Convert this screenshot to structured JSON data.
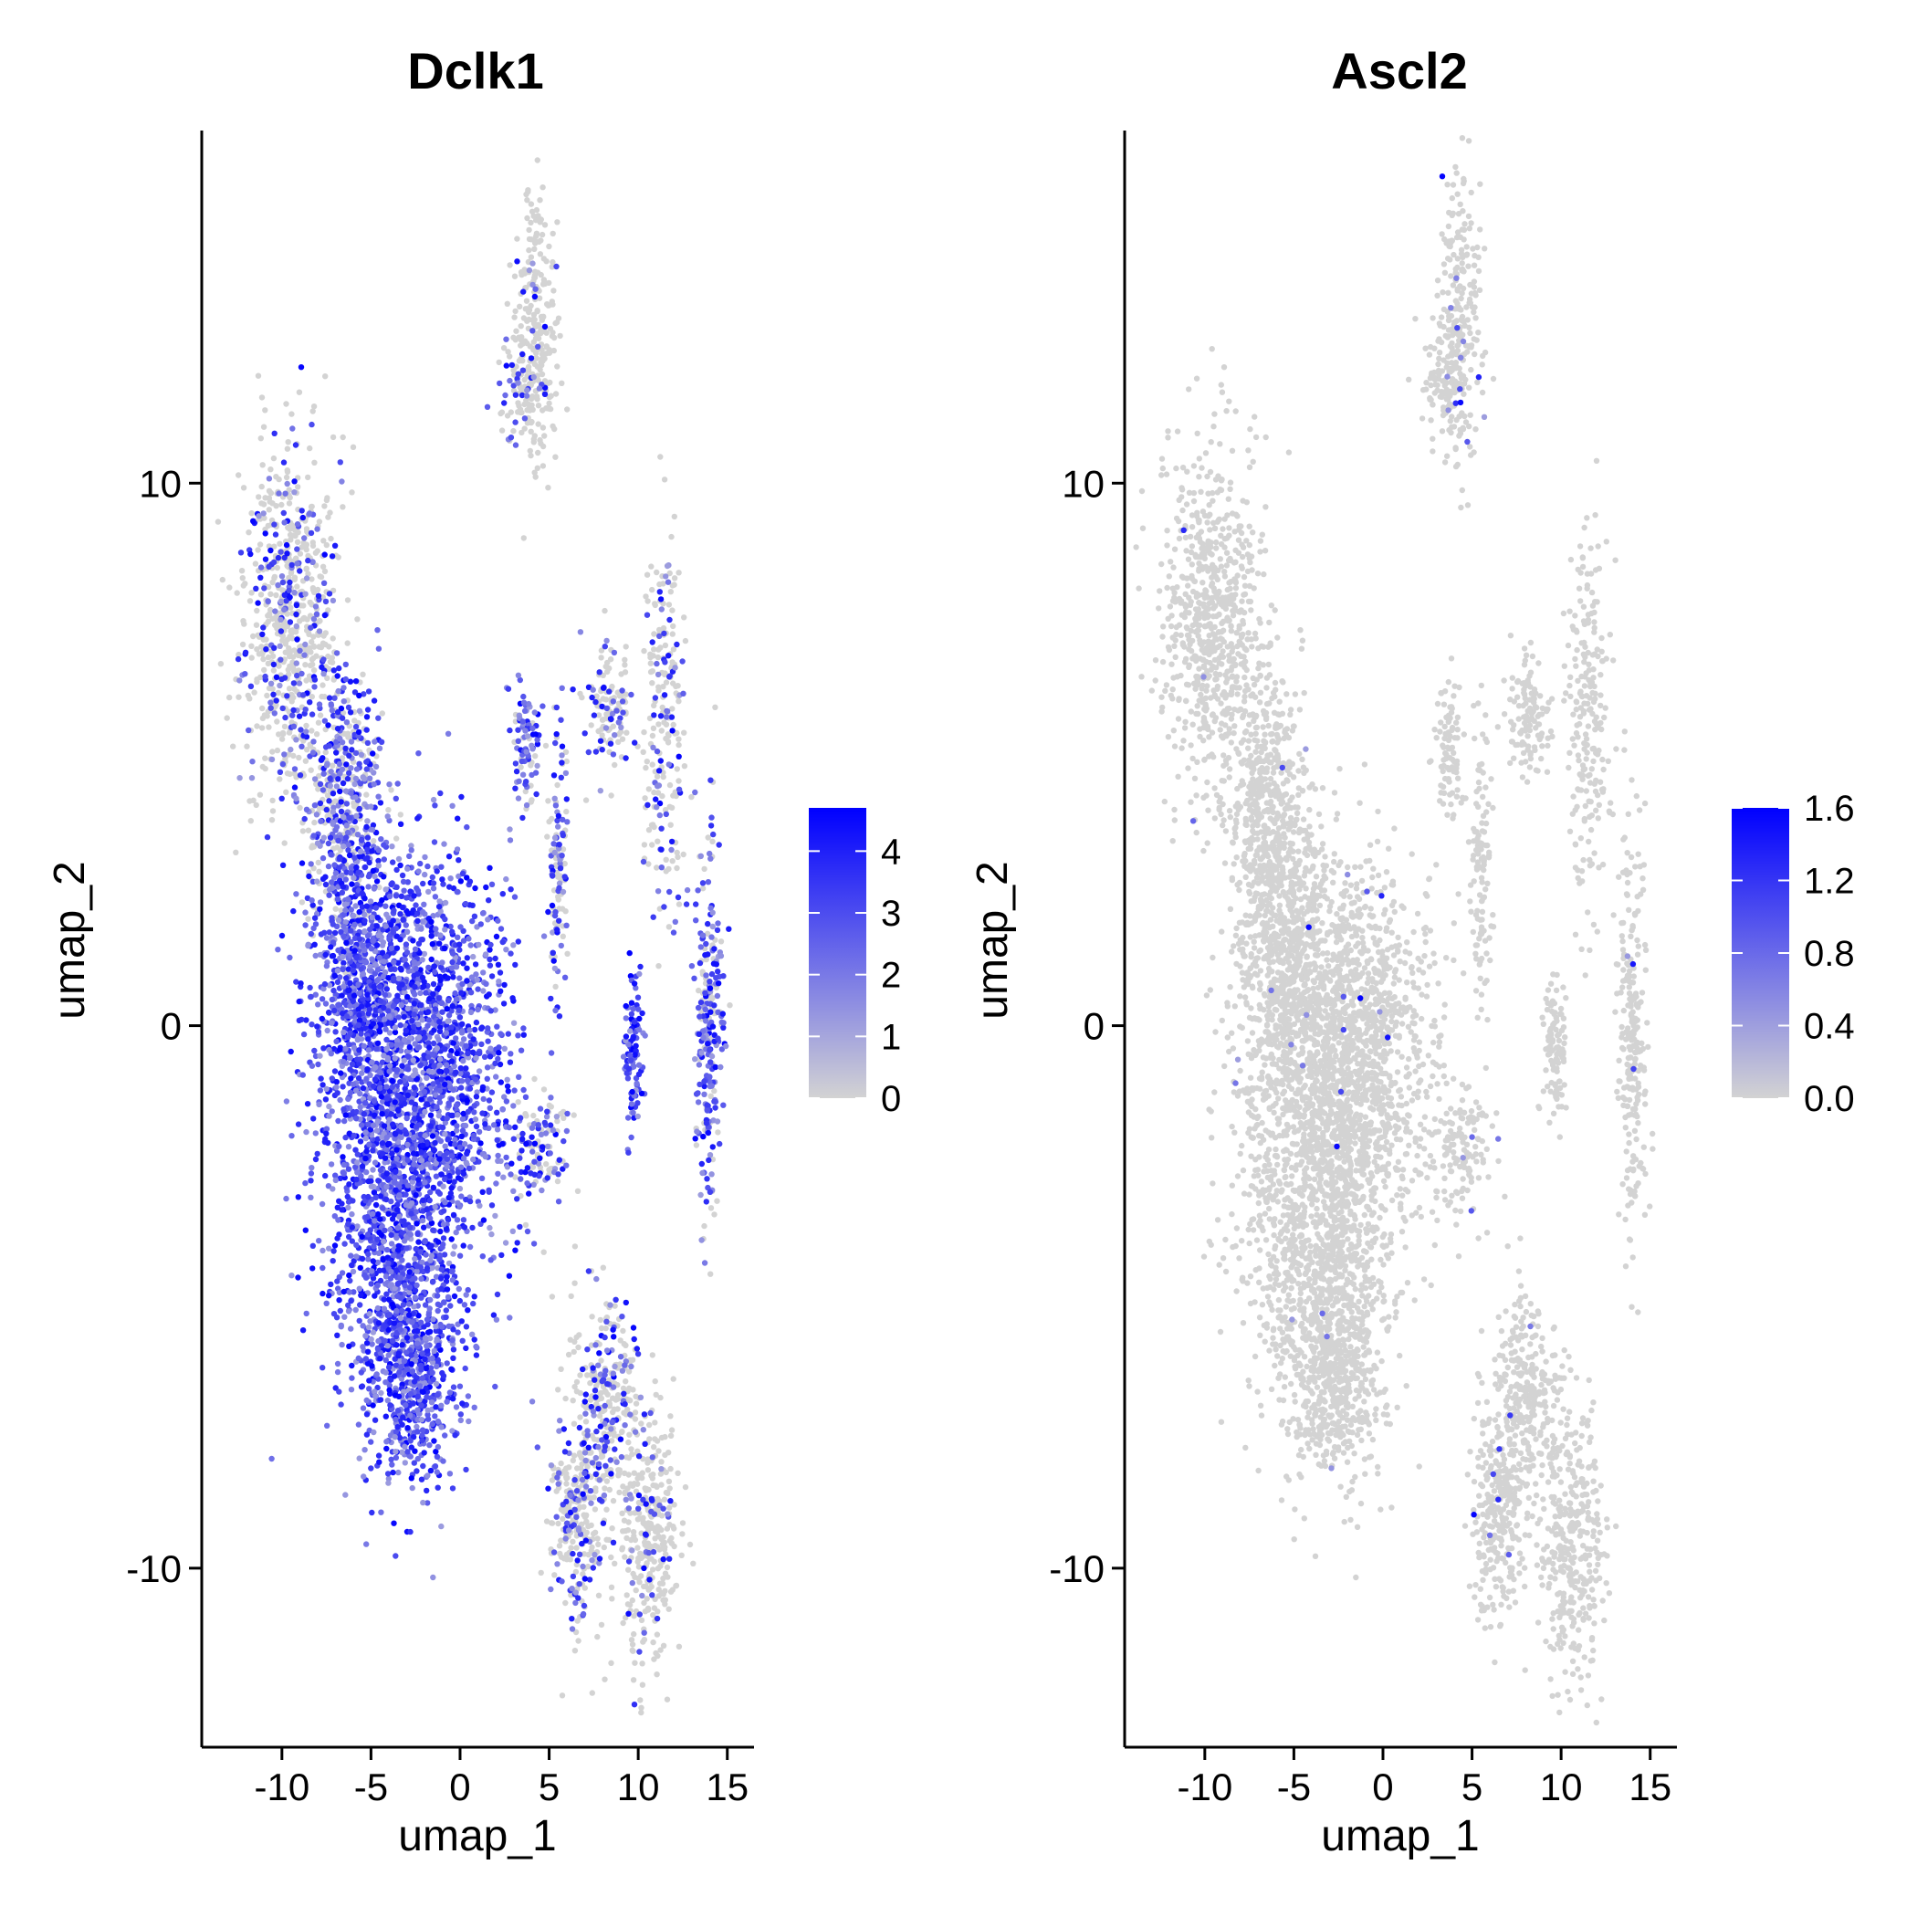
{
  "chart_data": [
    {
      "type": "scatter",
      "title": "Dclk1",
      "xlabel": "umap_1",
      "ylabel": "umap_2",
      "xlim": [
        -14.5,
        16.5
      ],
      "ylim": [
        -13.3,
        16.5
      ],
      "xticks": [
        -10,
        -5,
        0,
        5,
        10,
        15
      ],
      "yticks": [
        -10,
        0,
        10
      ],
      "xtick_labels": [
        "-10",
        "-5",
        "0",
        "5",
        "10",
        "15"
      ],
      "ytick_labels": [
        "-10",
        "0",
        "10"
      ],
      "grid": false,
      "legend": {
        "placement": "right",
        "type": "colorbar",
        "min": 0,
        "max": 4.7,
        "ticks": [
          0,
          1,
          2,
          3,
          4
        ],
        "tick_labels": [
          "0",
          "1",
          "2",
          "3",
          "4"
        ],
        "low_color": "#d3d3d3",
        "high_color": "#0000ff"
      },
      "point_color_default": "#d3d3d3",
      "clusters": [
        {
          "x": -9.5,
          "y": 7.5,
          "sx": 1.4,
          "sy": 1.6,
          "n": 700,
          "expr": 0.25
        },
        {
          "x": -6.5,
          "y": 4.0,
          "sx": 1.1,
          "sy": 1.3,
          "n": 500,
          "expr": 0.6
        },
        {
          "x": -5.5,
          "y": 1.0,
          "sx": 1.4,
          "sy": 1.4,
          "n": 700,
          "expr": 1.2
        },
        {
          "x": -2.0,
          "y": -0.5,
          "sx": 2.4,
          "sy": 1.8,
          "n": 1600,
          "expr": 1.8
        },
        {
          "x": -3.5,
          "y": -4.0,
          "sx": 2.0,
          "sy": 1.8,
          "n": 1200,
          "expr": 1.7
        },
        {
          "x": -2.5,
          "y": -6.5,
          "sx": 1.2,
          "sy": 1.0,
          "n": 400,
          "expr": 1.5
        },
        {
          "x": 4.3,
          "y": 13.0,
          "sx": 0.6,
          "sy": 1.3,
          "n": 250,
          "expr": 0.05
        },
        {
          "x": 3.3,
          "y": 11.8,
          "sx": 0.6,
          "sy": 0.5,
          "n": 80,
          "expr": 0.4
        },
        {
          "x": 3.7,
          "y": 5.2,
          "sx": 0.4,
          "sy": 0.6,
          "n": 90,
          "expr": 0.8
        },
        {
          "x": 5.5,
          "y": 3.0,
          "sx": 0.3,
          "sy": 1.3,
          "n": 120,
          "expr": 0.6
        },
        {
          "x": 8.3,
          "y": 5.8,
          "sx": 0.6,
          "sy": 0.6,
          "n": 120,
          "expr": 0.3
        },
        {
          "x": 11.5,
          "y": 5.5,
          "sx": 0.6,
          "sy": 1.8,
          "n": 220,
          "expr": 0.3
        },
        {
          "x": 9.7,
          "y": -0.4,
          "sx": 0.3,
          "sy": 0.7,
          "n": 100,
          "expr": 1.6
        },
        {
          "x": 14.0,
          "y": 0.0,
          "sx": 0.4,
          "sy": 1.8,
          "n": 250,
          "expr": 0.7
        },
        {
          "x": 4.5,
          "y": -2.3,
          "sx": 0.8,
          "sy": 0.6,
          "n": 120,
          "expr": 0.5
        },
        {
          "x": 8.0,
          "y": -7.0,
          "sx": 1.0,
          "sy": 1.0,
          "n": 300,
          "expr": 0.35
        },
        {
          "x": 6.5,
          "y": -9.0,
          "sx": 0.7,
          "sy": 0.9,
          "n": 250,
          "expr": 0.3
        },
        {
          "x": 10.5,
          "y": -9.5,
          "sx": 0.9,
          "sy": 1.3,
          "n": 350,
          "expr": 0.1
        }
      ]
    },
    {
      "type": "scatter",
      "title": "Ascl2",
      "xlabel": "umap_1",
      "ylabel": "umap_2",
      "xlim": [
        -14.5,
        16.5
      ],
      "ylim": [
        -13.3,
        16.5
      ],
      "xticks": [
        -10,
        -5,
        0,
        5,
        10,
        15
      ],
      "yticks": [
        -10,
        0,
        10
      ],
      "xtick_labels": [
        "-10",
        "-5",
        "0",
        "5",
        "10",
        "15"
      ],
      "ytick_labels": [
        "-10",
        "0",
        "10"
      ],
      "grid": false,
      "legend": {
        "placement": "right",
        "type": "colorbar",
        "min": 0,
        "max": 1.6,
        "ticks": [
          0.0,
          0.4,
          0.8,
          1.2,
          1.6
        ],
        "tick_labels": [
          "0.0",
          "0.4",
          "0.8",
          "1.2",
          "1.6"
        ],
        "low_color": "#d3d3d3",
        "high_color": "#0000ff"
      },
      "point_color_default": "#d3d3d3",
      "clusters": [
        {
          "x": -9.5,
          "y": 7.5,
          "sx": 1.4,
          "sy": 1.6,
          "n": 700,
          "expr": 0.01
        },
        {
          "x": -6.5,
          "y": 4.0,
          "sx": 1.1,
          "sy": 1.3,
          "n": 500,
          "expr": 0.01
        },
        {
          "x": -5.5,
          "y": 1.0,
          "sx": 1.4,
          "sy": 1.4,
          "n": 700,
          "expr": 0.005
        },
        {
          "x": -2.0,
          "y": -0.5,
          "sx": 2.4,
          "sy": 1.8,
          "n": 1600,
          "expr": 0.005
        },
        {
          "x": -3.5,
          "y": -4.0,
          "sx": 2.0,
          "sy": 1.8,
          "n": 1200,
          "expr": 0.005
        },
        {
          "x": -2.5,
          "y": -6.5,
          "sx": 1.2,
          "sy": 1.0,
          "n": 400,
          "expr": 0.005
        },
        {
          "x": 4.3,
          "y": 13.0,
          "sx": 0.6,
          "sy": 1.3,
          "n": 250,
          "expr": 0.03
        },
        {
          "x": 3.3,
          "y": 11.8,
          "sx": 0.6,
          "sy": 0.5,
          "n": 80,
          "expr": 0.03
        },
        {
          "x": 3.7,
          "y": 5.2,
          "sx": 0.4,
          "sy": 0.6,
          "n": 90,
          "expr": 0.0
        },
        {
          "x": 5.5,
          "y": 3.0,
          "sx": 0.3,
          "sy": 1.3,
          "n": 120,
          "expr": 0.0
        },
        {
          "x": 8.3,
          "y": 5.8,
          "sx": 0.6,
          "sy": 0.6,
          "n": 120,
          "expr": 0.0
        },
        {
          "x": 11.5,
          "y": 5.5,
          "sx": 0.6,
          "sy": 1.8,
          "n": 220,
          "expr": 0.0
        },
        {
          "x": 9.7,
          "y": -0.4,
          "sx": 0.3,
          "sy": 0.7,
          "n": 100,
          "expr": 0.0
        },
        {
          "x": 14.0,
          "y": 0.0,
          "sx": 0.4,
          "sy": 1.8,
          "n": 250,
          "expr": 0.01
        },
        {
          "x": 4.5,
          "y": -2.3,
          "sx": 0.8,
          "sy": 0.6,
          "n": 120,
          "expr": 0.02
        },
        {
          "x": 8.0,
          "y": -7.0,
          "sx": 1.0,
          "sy": 1.0,
          "n": 300,
          "expr": 0.01
        },
        {
          "x": 6.5,
          "y": -9.0,
          "sx": 0.7,
          "sy": 0.9,
          "n": 250,
          "expr": 0.01
        },
        {
          "x": 10.5,
          "y": -9.5,
          "sx": 0.9,
          "sy": 1.3,
          "n": 350,
          "expr": 0.01
        }
      ]
    }
  ]
}
